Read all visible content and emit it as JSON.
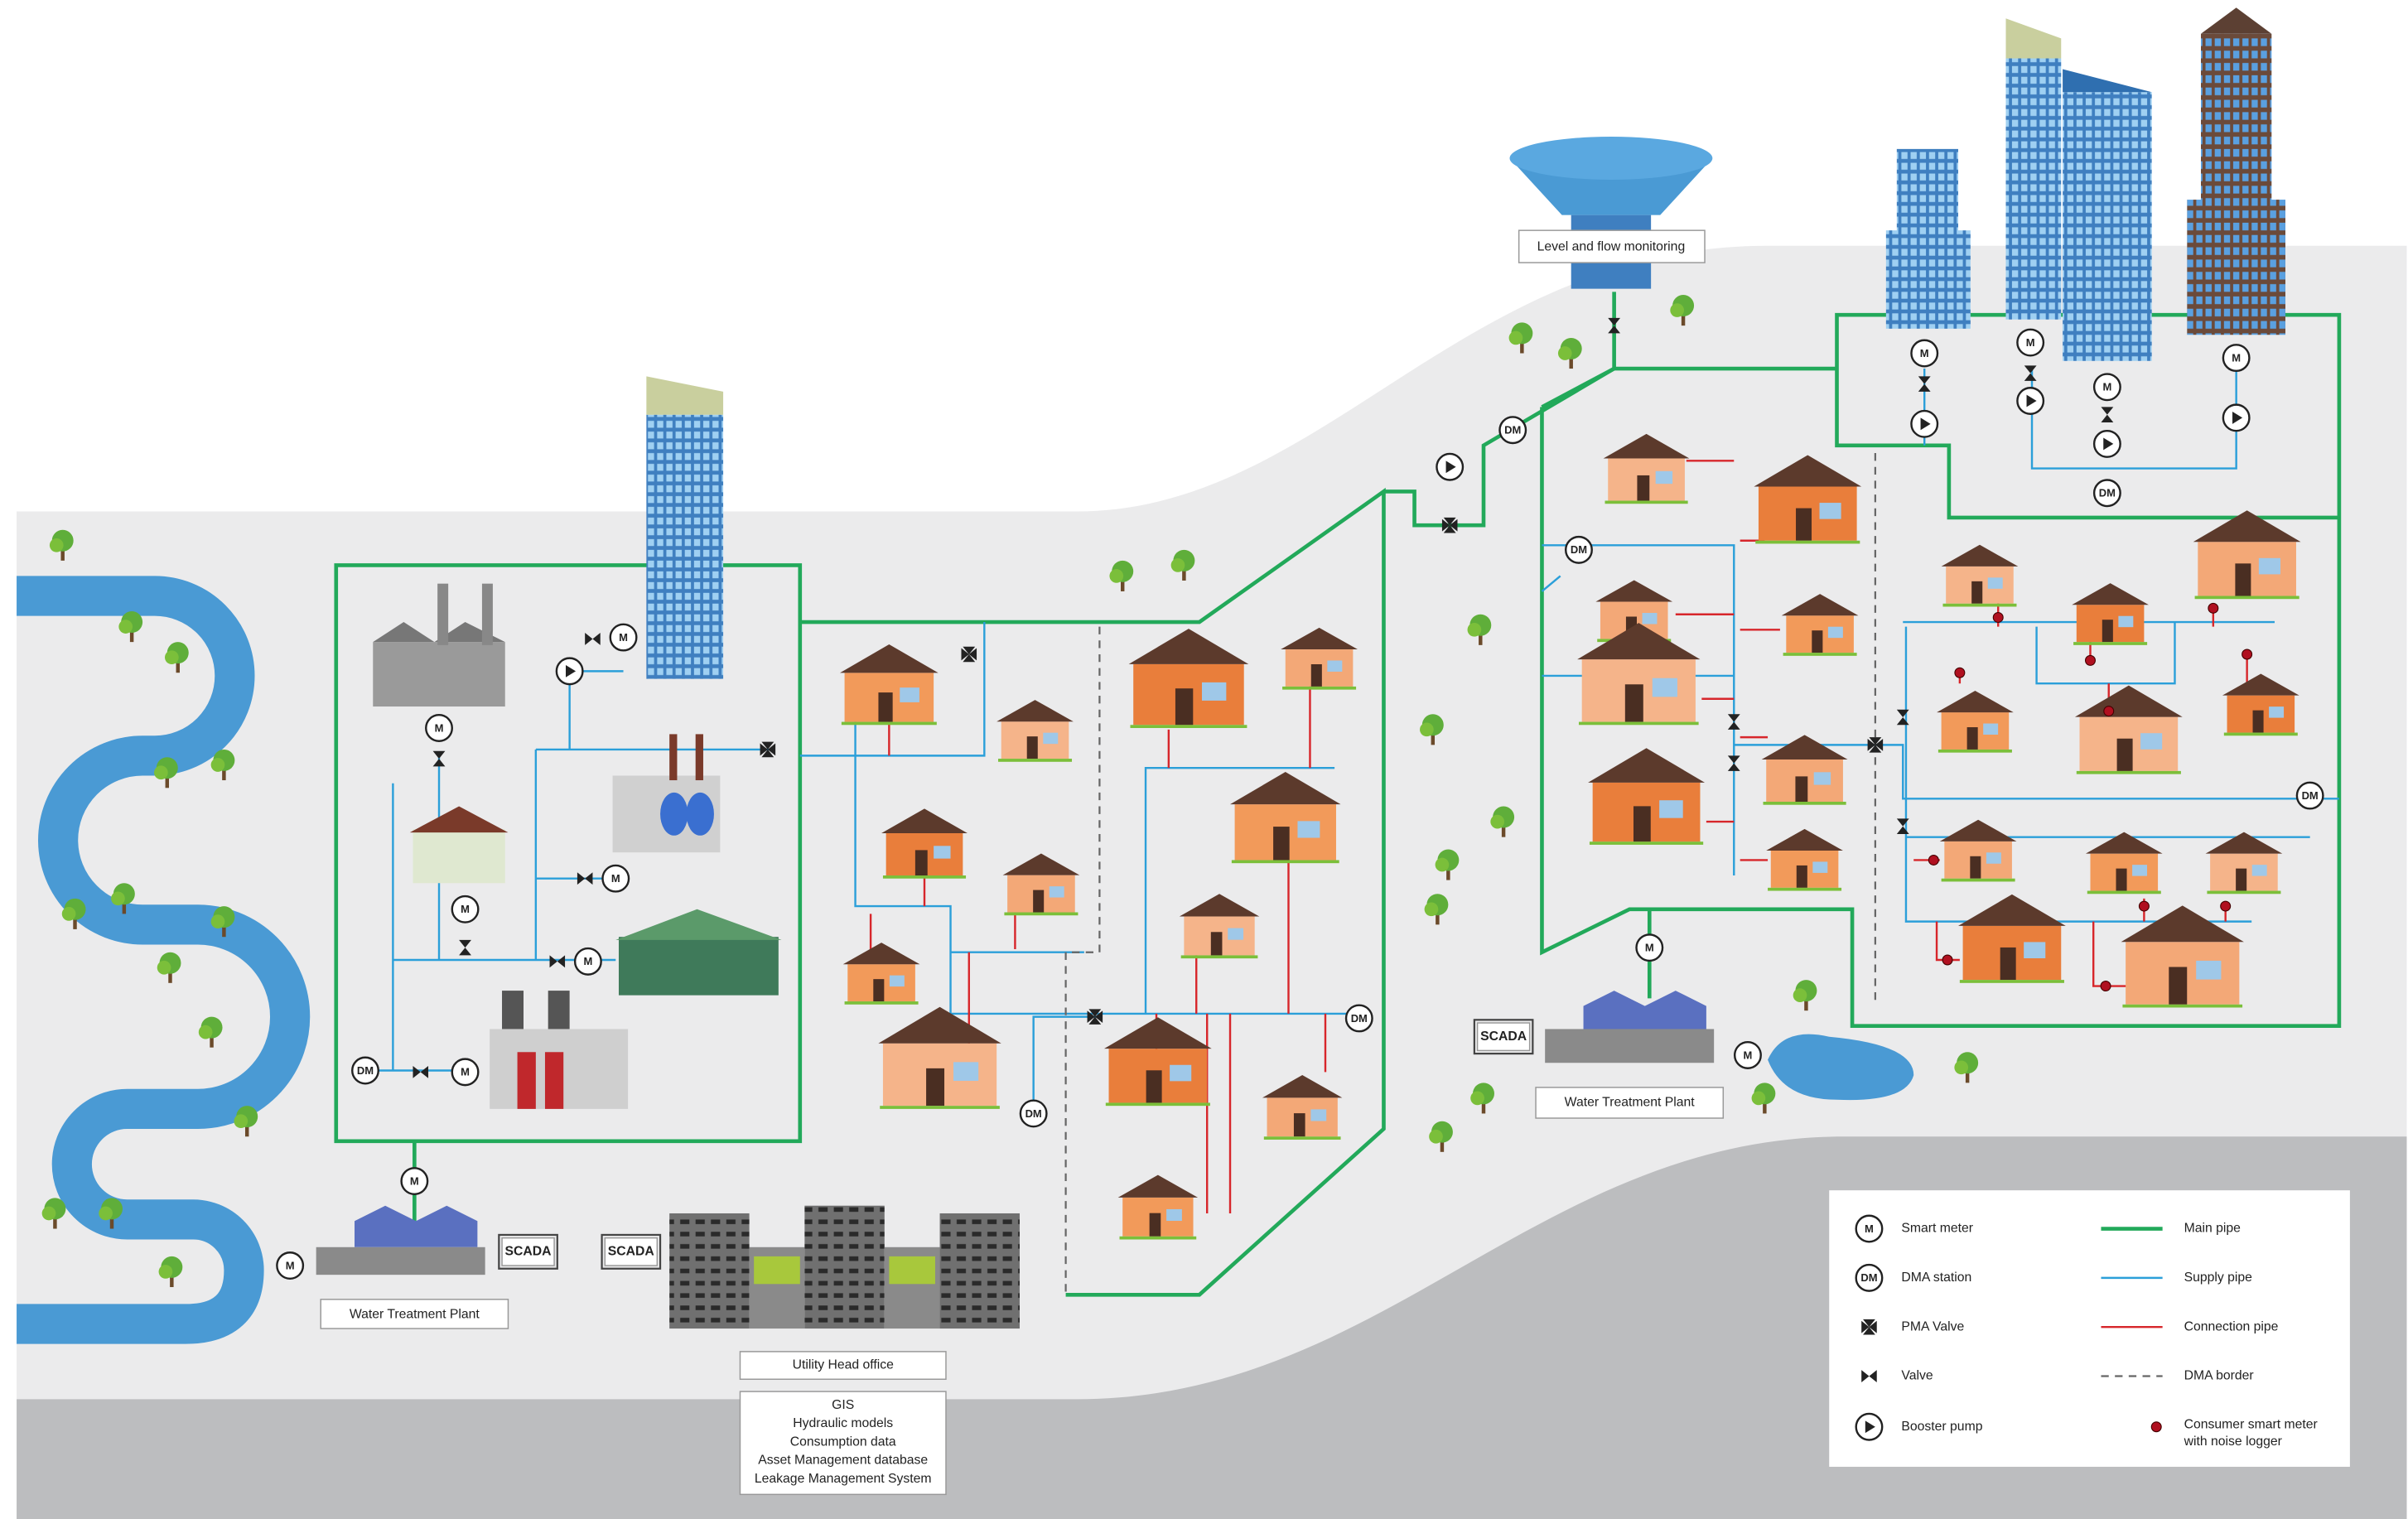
{
  "labels": {
    "level_monitoring": "Level and flow monitoring",
    "wtp_left": "Water Treatment Plant",
    "wtp_right": "Water Treatment Plant",
    "scada": [
      "SCADA",
      "SCADA",
      "SCADA"
    ],
    "head_office": "Utility Head office",
    "systems": [
      "GIS",
      "Hydraulic models",
      "Consumption data",
      "Asset Management database",
      "Leakage Management System"
    ]
  },
  "meters": [
    "M",
    "M",
    "M",
    "M",
    "M",
    "M",
    "M",
    "M",
    "M",
    "M",
    "M",
    "M",
    "M",
    "M"
  ],
  "dma_stations": [
    "DM",
    "DM",
    "DM",
    "DM",
    "DM",
    "DM",
    "DM"
  ],
  "legend": {
    "symbols": [
      {
        "symbol": "M",
        "label": "Smart meter"
      },
      {
        "symbol": "DM",
        "label": "DMA station"
      },
      {
        "label": "PMA Valve"
      },
      {
        "label": "Valve"
      },
      {
        "label": "Booster pump"
      }
    ],
    "lines": [
      {
        "label": "Main pipe"
      },
      {
        "label": "Supply pipe"
      },
      {
        "label": "Connection pipe"
      },
      {
        "label": "DMA border"
      },
      {
        "label": "Consumer smart meter with noise logger"
      }
    ]
  }
}
